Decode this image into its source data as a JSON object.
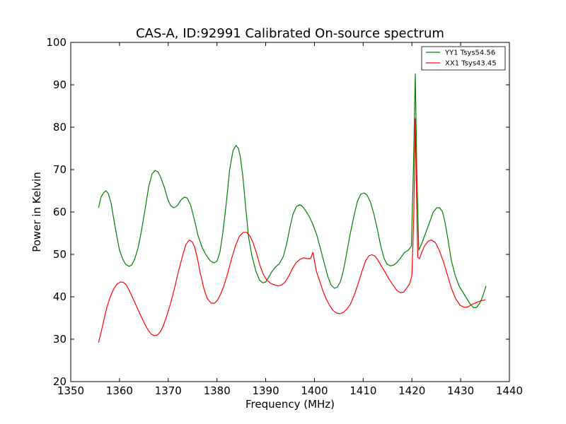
{
  "chart_data": {
    "type": "line",
    "title": "CAS-A, ID:92991 Calibrated On-source spectrum",
    "xlabel": "Frequency (MHz)",
    "ylabel": "Power in Kelvin",
    "xlim": [
      1350,
      1440
    ],
    "ylim": [
      20,
      100
    ],
    "xticks": [
      1350,
      1360,
      1370,
      1380,
      1390,
      1400,
      1410,
      1420,
      1430,
      1440
    ],
    "yticks": [
      20,
      30,
      40,
      50,
      60,
      70,
      80,
      90,
      100
    ],
    "grid": false,
    "legend_position": "top-right",
    "series": [
      {
        "name": "YY1 Tsys54.56",
        "color": "#008000",
        "x": [
          1355.7,
          1356.2,
          1356.8,
          1357.2,
          1357.7,
          1358.3,
          1358.8,
          1359.5,
          1360.0,
          1360.7,
          1361.3,
          1362.0,
          1362.5,
          1363.1,
          1363.8,
          1364.5,
          1365.3,
          1366.0,
          1366.7,
          1367.3,
          1367.9,
          1368.4,
          1369.2,
          1369.9,
          1370.5,
          1371.1,
          1371.8,
          1372.6,
          1373.3,
          1373.9,
          1374.6,
          1375.4,
          1376.1,
          1377.0,
          1377.7,
          1378.6,
          1379.4,
          1380.0,
          1380.6,
          1381.2,
          1381.9,
          1382.6,
          1383.3,
          1383.9,
          1384.4,
          1384.8,
          1385.3,
          1385.9,
          1386.5,
          1387.2,
          1388.0,
          1388.7,
          1389.4,
          1390.0,
          1390.6,
          1391.3,
          1392.0,
          1392.8,
          1393.6,
          1394.3,
          1395.0,
          1395.6,
          1396.3,
          1397.0,
          1397.5,
          1398.2,
          1399.0,
          1399.7,
          1400.5,
          1401.2,
          1402.0,
          1402.7,
          1403.4,
          1404.1,
          1404.7,
          1405.3,
          1405.9,
          1406.5,
          1407.2,
          1408.0,
          1408.8,
          1409.5,
          1410.2,
          1410.8,
          1411.5,
          1412.2,
          1412.9,
          1413.6,
          1414.3,
          1414.9,
          1415.6,
          1416.3,
          1417.0,
          1417.7,
          1418.5,
          1419.3,
          1419.9,
          1420.3,
          1420.7,
          1421.0,
          1421.4,
          1422.0,
          1422.8,
          1423.6,
          1424.4,
          1425.1,
          1425.7,
          1426.3,
          1426.8,
          1427.4,
          1428.1,
          1428.9,
          1429.7,
          1430.5,
          1431.3,
          1432.0,
          1432.7,
          1433.3,
          1433.9,
          1434.5,
          1435.2
        ],
        "y": [
          61.0,
          63.5,
          64.6,
          65.0,
          64.4,
          62.0,
          58.5,
          54.0,
          51.0,
          48.8,
          47.6,
          47.2,
          47.5,
          48.8,
          51.5,
          55.5,
          61.0,
          66.0,
          69.0,
          69.8,
          69.5,
          68.3,
          65.8,
          63.0,
          61.5,
          61.0,
          61.4,
          62.8,
          63.5,
          63.3,
          61.6,
          58.0,
          54.5,
          51.5,
          50.0,
          48.5,
          48.0,
          48.4,
          50.5,
          55.0,
          62.0,
          70.0,
          74.5,
          75.7,
          75.0,
          73.0,
          68.5,
          61.0,
          54.0,
          49.5,
          46.0,
          44.0,
          43.3,
          43.5,
          44.6,
          46.0,
          47.0,
          47.8,
          49.5,
          52.5,
          56.5,
          59.5,
          61.3,
          61.7,
          61.4,
          60.3,
          58.8,
          57.0,
          54.5,
          51.5,
          48.0,
          45.0,
          42.8,
          42.0,
          42.3,
          43.5,
          46.0,
          49.5,
          54.0,
          58.5,
          62.5,
          64.2,
          64.5,
          64.0,
          62.3,
          59.5,
          56.0,
          52.0,
          49.0,
          47.7,
          47.3,
          47.5,
          48.2,
          49.2,
          50.5,
          51.0,
          52.0,
          70.0,
          92.6,
          70.0,
          51.0,
          52.5,
          55.0,
          57.5,
          60.0,
          61.0,
          61.0,
          60.0,
          57.5,
          53.5,
          48.5,
          45.0,
          42.5,
          41.0,
          39.5,
          38.2,
          37.4,
          37.5,
          38.5,
          40.0,
          42.6
        ]
      },
      {
        "name": "XX1 Tsys43.45",
        "color": "#ff0000",
        "x": [
          1355.7,
          1356.2,
          1356.8,
          1357.4,
          1358.1,
          1358.8,
          1359.5,
          1360.2,
          1360.8,
          1361.4,
          1362.0,
          1362.7,
          1363.4,
          1364.2,
          1365.0,
          1365.8,
          1366.5,
          1367.2,
          1367.8,
          1368.4,
          1369.0,
          1369.7,
          1370.5,
          1371.3,
          1372.1,
          1372.9,
          1373.6,
          1374.3,
          1374.9,
          1375.4,
          1376.0,
          1376.6,
          1377.3,
          1378.0,
          1378.8,
          1379.5,
          1380.1,
          1380.7,
          1381.4,
          1382.2,
          1383.0,
          1383.8,
          1384.6,
          1385.4,
          1386.1,
          1386.8,
          1387.4,
          1388.1,
          1388.8,
          1389.5,
          1390.2,
          1391.0,
          1391.8,
          1392.6,
          1393.3,
          1394.0,
          1394.7,
          1395.4,
          1396.2,
          1397.0,
          1397.8,
          1398.5,
          1399.2,
          1399.7,
          1400.0,
          1400.4,
          1401.0,
          1401.7,
          1402.4,
          1403.1,
          1403.8,
          1404.5,
          1405.2,
          1405.9,
          1406.6,
          1407.4,
          1408.2,
          1409.0,
          1409.8,
          1410.5,
          1411.2,
          1411.8,
          1412.4,
          1413.0,
          1413.7,
          1414.5,
          1415.3,
          1416.1,
          1416.9,
          1417.6,
          1418.3,
          1418.9,
          1419.5,
          1420.0,
          1420.4,
          1420.7,
          1421.0,
          1421.2,
          1421.6,
          1422.0,
          1422.6,
          1423.3,
          1424.0,
          1424.8,
          1425.6,
          1426.4,
          1427.2,
          1428.1,
          1429.0,
          1429.9,
          1430.7,
          1431.5,
          1432.3,
          1433.1,
          1434.0,
          1435.1
        ],
        "y": [
          29.2,
          31.5,
          34.5,
          37.5,
          40.0,
          41.8,
          43.0,
          43.5,
          43.4,
          42.8,
          41.5,
          39.8,
          38.0,
          36.0,
          34.0,
          32.3,
          31.2,
          30.8,
          31.0,
          31.8,
          33.2,
          35.5,
          38.5,
          42.0,
          46.0,
          49.5,
          52.3,
          53.4,
          53.0,
          51.8,
          49.0,
          45.5,
          42.0,
          39.6,
          38.5,
          38.5,
          39.2,
          40.5,
          42.5,
          45.5,
          49.0,
          52.0,
          54.3,
          55.2,
          55.2,
          54.3,
          52.8,
          50.3,
          47.5,
          45.3,
          44.0,
          43.2,
          42.8,
          42.6,
          42.8,
          43.5,
          44.8,
          46.5,
          48.0,
          48.8,
          49.2,
          49.0,
          49.0,
          50.5,
          48.5,
          46.0,
          44.0,
          41.5,
          39.5,
          38.0,
          36.8,
          36.2,
          36.0,
          36.3,
          37.0,
          38.3,
          40.5,
          43.2,
          46.2,
          48.5,
          49.7,
          49.9,
          49.6,
          48.7,
          47.3,
          45.8,
          44.2,
          42.8,
          41.5,
          41.0,
          41.1,
          42.0,
          43.0,
          45.0,
          60.0,
          82.0,
          60.0,
          49.3,
          49.0,
          50.5,
          52.0,
          53.1,
          53.4,
          52.8,
          51.0,
          48.5,
          45.5,
          42.0,
          39.5,
          38.0,
          37.5,
          37.6,
          38.2,
          38.6,
          39.0,
          39.3
        ]
      }
    ]
  }
}
